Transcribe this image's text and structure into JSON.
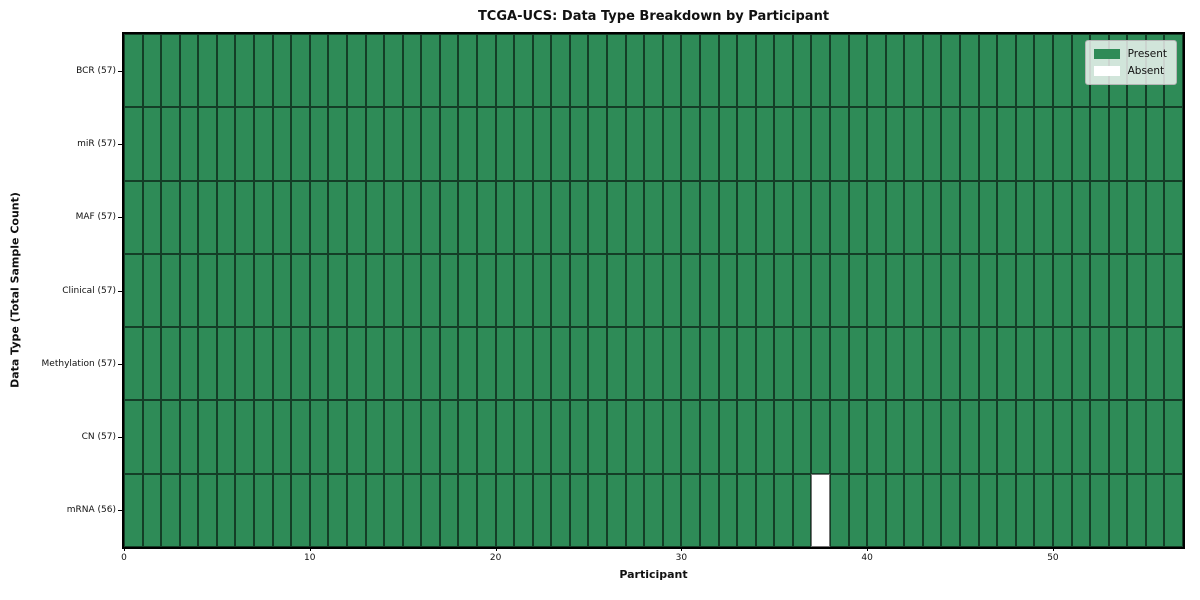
{
  "chart_data": {
    "type": "heatmap",
    "title": "TCGA-UCS: Data Type Breakdown by Participant",
    "xlabel": "Participant",
    "ylabel": "Data Type (Total Sample Count)",
    "n_participants": 57,
    "xlim": [
      0,
      57
    ],
    "x_ticks": [
      0,
      10,
      20,
      30,
      40,
      50
    ],
    "rows": [
      {
        "name": "BCR",
        "label": "BCR (57)",
        "present_count": 57,
        "absent_participants": []
      },
      {
        "name": "miR",
        "label": "miR (57)",
        "present_count": 57,
        "absent_participants": []
      },
      {
        "name": "MAF",
        "label": "MAF (57)",
        "present_count": 57,
        "absent_participants": []
      },
      {
        "name": "Clinical",
        "label": "Clinical (57)",
        "present_count": 57,
        "absent_participants": []
      },
      {
        "name": "Methylation",
        "label": "Methylation (57)",
        "present_count": 57,
        "absent_participants": []
      },
      {
        "name": "CN",
        "label": "CN (57)",
        "present_count": 57,
        "absent_participants": []
      },
      {
        "name": "mRNA",
        "label": "mRNA (56)",
        "present_count": 56,
        "absent_participants": [
          37
        ]
      }
    ],
    "colors": {
      "present": "#2e8b57",
      "absent": "#ffffff",
      "cell_edge": "rgba(0,0,0,0.55)"
    },
    "legend": {
      "position": "upper right",
      "items": [
        {
          "label": "Present",
          "color": "#2e8b57"
        },
        {
          "label": "Absent",
          "color": "#ffffff"
        }
      ]
    }
  }
}
